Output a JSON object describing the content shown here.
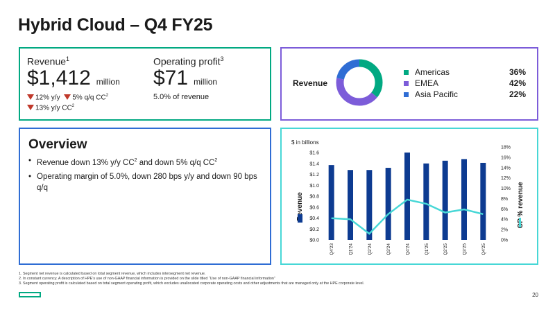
{
  "title": "Hybrid Cloud – Q4 FY25",
  "kpi": {
    "revenue_label": "Revenue",
    "revenue_note": "1",
    "revenue_value": "$1,412",
    "revenue_unit": "million",
    "revenue_yoy": "12% y/y",
    "revenue_qoq": "5% q/q CC",
    "revenue_qoq_note": "2",
    "revenue_yoy_cc": "13% y/y CC",
    "revenue_yoy_cc_note": "2",
    "op_label": "Operating profit",
    "op_note": "3",
    "op_value": "$71",
    "op_unit": "million",
    "op_margin": "5.0% of revenue"
  },
  "region": {
    "title": "Revenue",
    "items": [
      {
        "name": "Americas",
        "pct": "36%",
        "value": 36,
        "color": "#01a982"
      },
      {
        "name": "EMEA",
        "pct": "42%",
        "value": 42,
        "color": "#7c5cd9"
      },
      {
        "name": "Asia Pacific",
        "pct": "22%",
        "value": 22,
        "color": "#2f6dd4"
      }
    ]
  },
  "overview": {
    "title": "Overview",
    "bullet1_text": "Revenue down 13% y/y CC",
    "bullet1_note": "2",
    "bullet1_text2": " and down 5% q/q CC",
    "bullet1_note2": "2",
    "bullet2_text": "Operating margin of 5.0%, down 280 bps y/y and down 90 bps q/q"
  },
  "chart_data": {
    "type": "bar",
    "unit_label": "$ in billions",
    "categories": [
      "Q4'23",
      "Q1'24",
      "Q2'24",
      "Q3'24",
      "Q4'24",
      "Q1'25",
      "Q2'25",
      "Q3'25",
      "Q4'25"
    ],
    "ylabel": "Revenue",
    "y2label": "OP % revenue",
    "ylim": [
      0,
      1.6
    ],
    "yticks": [
      "$0.0",
      "$0.2",
      "$0.4",
      "$0.6",
      "$0.8",
      "$1.0",
      "$1.2",
      "$1.4",
      "$1.6"
    ],
    "y2lim": [
      0,
      18
    ],
    "y2ticks": [
      "0%",
      "2%",
      "4%",
      "6%",
      "8%",
      "10%",
      "12%",
      "14%",
      "16%",
      "18%"
    ],
    "series": [
      {
        "name": "Revenue",
        "type": "bar",
        "axis": "left",
        "color": "#0d3b91",
        "values": [
          1.37,
          1.28,
          1.28,
          1.32,
          1.6,
          1.4,
          1.45,
          1.48,
          1.41
        ]
      },
      {
        "name": "OP % revenue",
        "type": "line",
        "axis": "right",
        "color": "#47d7d6",
        "values": [
          4.2,
          4.0,
          1.2,
          5.0,
          7.8,
          7.0,
          5.3,
          5.9,
          5.0
        ]
      }
    ]
  },
  "footnotes": [
    "1. Segment net revenue is calculated based on total segment revenue, which includes intersegment net revenue.",
    "2. In constant currency. A description of HPE’s use of non-GAAP financial information is provided on the slide titled “Use of non-GAAP financial information”",
    "3. Segment operating profit is calculated based on total segment operating profit, which excludes unallocated corporate operating costs and other adjustments that are managed only at the HPE corporate level."
  ],
  "page_number": "20",
  "colors": {
    "green": "#01a982",
    "purple": "#7c5cd9",
    "blue": "#2f6dd4",
    "teal": "#47d7d6",
    "navy": "#0d3b91",
    "down_red": "#c0392b"
  }
}
